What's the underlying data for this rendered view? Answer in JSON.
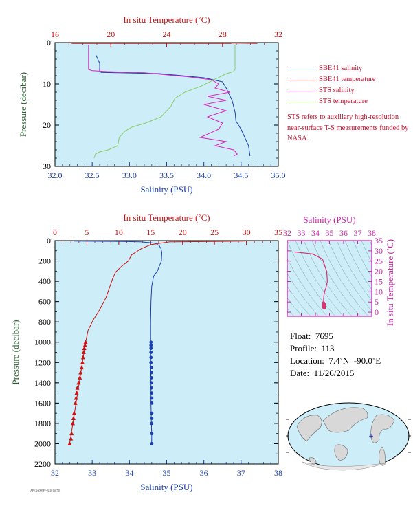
{
  "chart_data": [
    {
      "id": "top",
      "type": "line",
      "xlabel": "Salinity (PSU)",
      "x2label": "In situ Temperature (˚C)",
      "ylabel": "Pressure (decibar)",
      "xlim": [
        32.0,
        35.0
      ],
      "x2lim": [
        16,
        32
      ],
      "ylim": [
        30,
        0
      ],
      "xticks": [
        "32.0",
        "32.5",
        "33.0",
        "33.5",
        "34.0",
        "34.5",
        "35.0"
      ],
      "x2ticks": [
        "16",
        "20",
        "24",
        "28",
        "32"
      ],
      "yticks": [
        "0",
        "10",
        "20",
        "30"
      ],
      "series": [
        {
          "name": "SBE41 salinity",
          "axis": "x",
          "color": "#1a3fb0",
          "x": [
            32.55,
            32.6,
            32.6,
            32.62,
            33.4,
            34.0,
            34.25,
            34.3,
            34.38,
            34.42,
            34.43,
            34.5,
            34.55,
            34.6,
            34.62
          ],
          "y": [
            3,
            5,
            7,
            7.2,
            7.5,
            8.5,
            9.5,
            11,
            14,
            17,
            19,
            21,
            23,
            25,
            27.5
          ]
        },
        {
          "name": "SBE41 temperature",
          "axis": "x2",
          "color": "#cc1111",
          "x": [
            17.2,
            28.6,
            28.7,
            30.5
          ],
          "y": [
            0.2,
            0.2,
            0.1,
            0.2
          ]
        },
        {
          "name": "STS salinity",
          "axis": "x",
          "color": "#e020c0",
          "x": [
            32.45,
            32.45,
            32.45,
            32.5,
            32.7,
            33.2,
            33.8,
            34.1,
            34.2,
            34.15,
            34.35,
            34.05,
            34.3,
            34.0,
            34.3,
            34.05,
            34.25,
            34.2,
            33.95,
            34.3,
            34.15,
            34.4,
            34.45,
            34.4
          ],
          "y": [
            0.5,
            3,
            6.5,
            6.8,
            7.0,
            7.3,
            8.3,
            9.0,
            10,
            11,
            12,
            13,
            14,
            15,
            16.5,
            18,
            19.5,
            21,
            23,
            24,
            25,
            26,
            27,
            27.5
          ]
        },
        {
          "name": "STS temperature",
          "axis": "x2",
          "color": "#88cc66",
          "x": [
            28.9,
            28.9,
            28.8,
            28.3,
            27.5,
            26.5,
            25.3,
            24.6,
            24.3,
            23.6,
            22.5,
            21.5,
            21.0,
            20.6,
            20.5,
            19.8,
            19.2,
            18.9,
            18.8
          ],
          "y": [
            0.5,
            6.5,
            7.0,
            7.5,
            8.8,
            10.5,
            12.0,
            13.5,
            15.5,
            18.0,
            19.5,
            20.5,
            21.5,
            23.0,
            25.0,
            26.0,
            26.5,
            27.0,
            28.0
          ]
        }
      ]
    },
    {
      "id": "main",
      "type": "line",
      "xlabel": "Salinity (PSU)",
      "x2label": "In situ Temperature (˚C)",
      "ylabel": "Pressure (decibar)",
      "xlim": [
        32,
        38
      ],
      "x2lim": [
        0,
        35
      ],
      "ylim": [
        2200,
        0
      ],
      "xticks": [
        "32",
        "33",
        "34",
        "35",
        "36",
        "37",
        "38"
      ],
      "x2ticks": [
        "0",
        "5",
        "10",
        "15",
        "20",
        "25",
        "30",
        "35"
      ],
      "yticks": [
        "0",
        "200",
        "400",
        "600",
        "800",
        "1000",
        "1200",
        "1400",
        "1600",
        "1800",
        "2000",
        "2200"
      ],
      "series": [
        {
          "name": "salinity",
          "axis": "x",
          "color": "#1a3fb0",
          "x": [
            32.5,
            33.8,
            34.3,
            34.7,
            34.8,
            34.85,
            34.87,
            34.86,
            34.75,
            34.65,
            34.6,
            34.58,
            34.57,
            34.57,
            34.57,
            34.58,
            34.58,
            34.59,
            34.6,
            34.6,
            34.6
          ],
          "y": [
            5,
            8,
            12,
            25,
            50,
            80,
            120,
            200,
            300,
            350,
            450,
            600,
            800,
            1000,
            1200,
            1400,
            1600,
            1800,
            1900,
            2000,
            2000
          ]
        },
        {
          "name": "temperature",
          "axis": "x2",
          "color": "#cc1111",
          "x": [
            33,
            30.3,
            29.5,
            25,
            18,
            15,
            13.5,
            12,
            11.5,
            10.5,
            9.5,
            9,
            8.5,
            8,
            7.5,
            7,
            6,
            5.2,
            4.8,
            4.3,
            3.8,
            3.3,
            2.8,
            2.3
          ],
          "y": [
            0,
            2,
            5,
            8,
            12,
            40,
            80,
            140,
            200,
            250,
            310,
            380,
            470,
            560,
            620,
            680,
            780,
            880,
            1000,
            1200,
            1400,
            1600,
            1800,
            2000
          ]
        },
        {
          "name": "salinity samples",
          "axis": "x",
          "color": "#1a3fb0",
          "x": [
            34.58,
            34.58,
            34.58,
            34.58,
            34.58,
            34.58,
            34.59,
            34.59,
            34.59,
            34.59,
            34.59,
            34.6,
            34.6,
            34.6,
            34.6,
            34.6,
            34.6,
            34.6,
            34.6
          ],
          "y": [
            1000,
            1030,
            1060,
            1100,
            1150,
            1200,
            1250,
            1300,
            1350,
            1400,
            1450,
            1500,
            1550,
            1600,
            1700,
            1750,
            1800,
            1900,
            2000
          ]
        },
        {
          "name": "temperature samples",
          "axis": "x2",
          "color": "#cc1111",
          "x": [
            4.8,
            4.7,
            4.6,
            4.5,
            4.4,
            4.3,
            4.2,
            4.0,
            3.9,
            3.7,
            3.5,
            3.4,
            3.3,
            3.2,
            3.0,
            2.9,
            2.8,
            2.6,
            2.5,
            2.3
          ],
          "y": [
            1000,
            1030,
            1060,
            1100,
            1150,
            1200,
            1250,
            1300,
            1350,
            1400,
            1450,
            1500,
            1550,
            1600,
            1700,
            1750,
            1800,
            1900,
            1950,
            2000
          ]
        }
      ]
    },
    {
      "id": "ts",
      "type": "scatter",
      "xlabel": "Salinity (PSU)",
      "ylabel": "In situ Temperature (˚C)",
      "xlim": [
        32,
        38
      ],
      "ylim": [
        -2,
        35
      ],
      "xticks": [
        "32",
        "33",
        "34",
        "35",
        "36",
        "37",
        "38"
      ],
      "yticks": [
        "0",
        "5",
        "10",
        "15",
        "20",
        "25",
        "30",
        "35"
      ],
      "series": [
        {
          "name": "T-S",
          "color": "#e03070",
          "x": [
            32.5,
            33.8,
            34.5,
            34.8,
            34.85,
            34.75,
            34.65,
            34.6,
            34.58,
            34.58,
            34.6
          ],
          "y": [
            29.5,
            28.5,
            26,
            20,
            15,
            12,
            10,
            8,
            6,
            4.5,
            2.5
          ]
        }
      ]
    }
  ],
  "legend": [
    {
      "label": "SBE41 salinity",
      "color": "#1a3fb0"
    },
    {
      "label": "SBE41 temperature",
      "color": "#cc1111"
    },
    {
      "label": "STS salinity",
      "color": "#e020c0"
    },
    {
      "label": "STS temperature",
      "color": "#88cc66"
    }
  ],
  "note": "STS refers to auxiliary high-resolution near-surface T-S measurements funded by NASA.",
  "info": {
    "float": "Float:  7695",
    "profile": "Profile:  113",
    "location": "Location:  7.4˚N  -90.0˚E",
    "date": "Date:  11/26/2015"
  },
  "footer": "APEX6095PF-B-20160728",
  "colors": {
    "plot_bg": "#cdeef8",
    "temp": "#cc1111",
    "sal": "#1a3fb0",
    "ts": "#cc22aa",
    "axis_label": "#2b6030"
  }
}
